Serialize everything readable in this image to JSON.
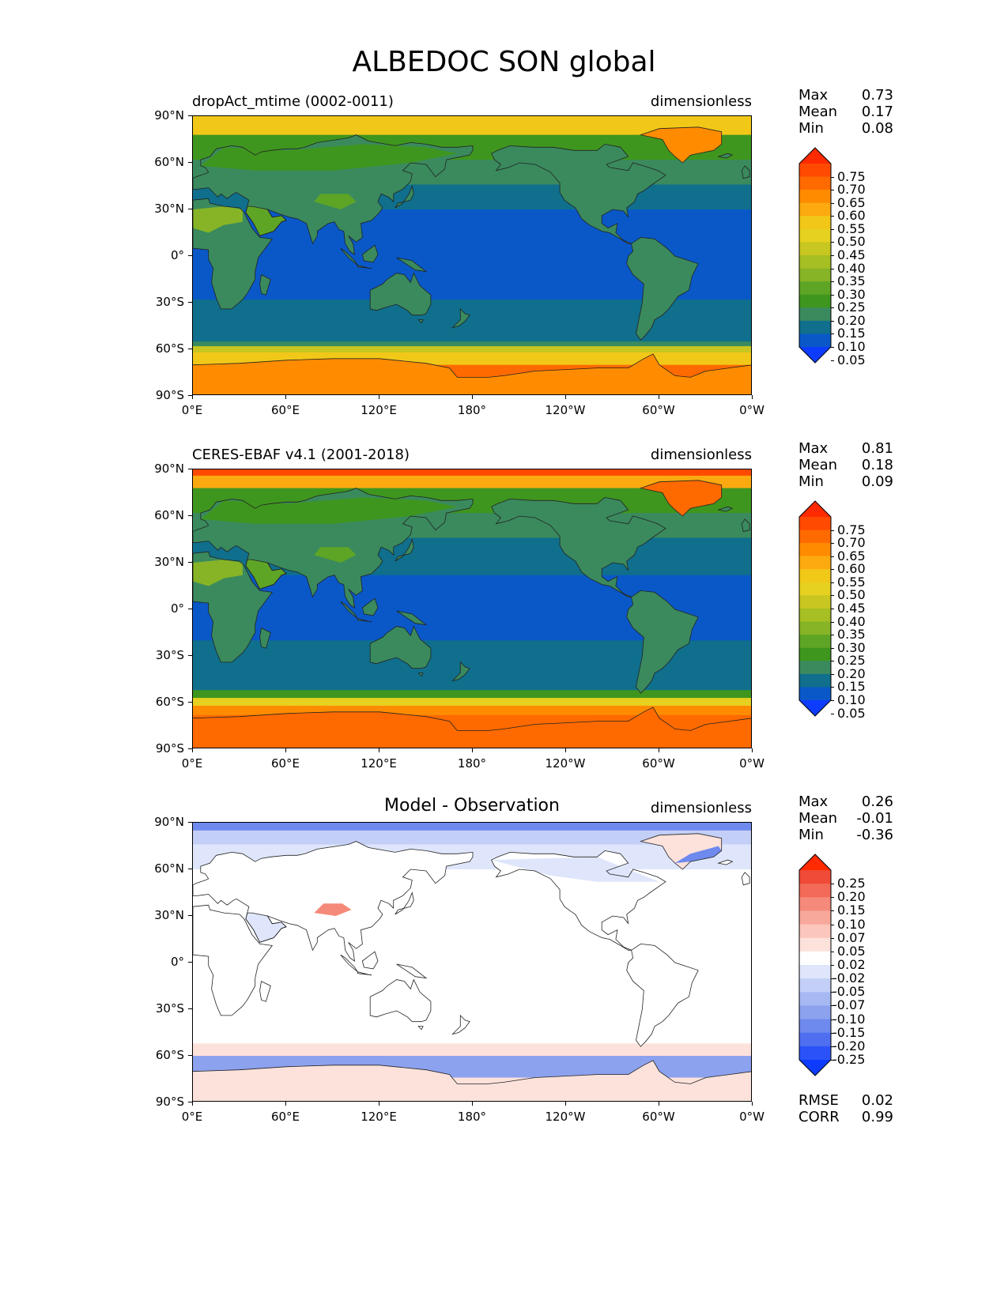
{
  "title": "ALBEDOC SON global",
  "lat_ticks": [
    "90°N",
    "60°N",
    "30°N",
    "0°",
    "30°S",
    "60°S",
    "90°S"
  ],
  "lon_ticks": [
    "0°E",
    "60°E",
    "120°E",
    "180°",
    "120°W",
    "60°W",
    "0°W"
  ],
  "panels": [
    {
      "left_title": "dropAct_mtime (0002-0011)",
      "center_title": "",
      "units": "dimensionless",
      "stats": [
        {
          "name": "Max",
          "value": "0.73"
        },
        {
          "name": "Mean",
          "value": "0.17"
        },
        {
          "name": "Min",
          "value": "0.08"
        }
      ],
      "colorbar_labels": [
        "0.75",
        "0.70",
        "0.65",
        "0.60",
        "0.55",
        "0.50",
        "0.45",
        "0.40",
        "0.35",
        "0.30",
        "0.25",
        "0.20",
        "0.15",
        "0.10",
        "0.05"
      ],
      "colorbar_colors": [
        "#ff2a00",
        "#ff4a00",
        "#ff6a00",
        "#ff8c00",
        "#fcaa10",
        "#f2c818",
        "#e6d020",
        "#c8c620",
        "#a6bf22",
        "#86b426",
        "#5ea526",
        "#3f961e",
        "#3a8a5e",
        "#0f6f8c",
        "#0a58c8",
        "#0d3cff"
      ],
      "field": "model"
    },
    {
      "left_title": "CERES-EBAF v4.1 (2001-2018)",
      "center_title": "",
      "units": "dimensionless",
      "stats": [
        {
          "name": "Max",
          "value": "0.81"
        },
        {
          "name": "Mean",
          "value": "0.18"
        },
        {
          "name": "Min",
          "value": "0.09"
        }
      ],
      "colorbar_labels": [
        "0.75",
        "0.70",
        "0.65",
        "0.60",
        "0.55",
        "0.50",
        "0.45",
        "0.40",
        "0.35",
        "0.30",
        "0.25",
        "0.20",
        "0.15",
        "0.10",
        "0.05"
      ],
      "colorbar_colors": [
        "#ff2a00",
        "#ff4a00",
        "#ff6a00",
        "#ff8c00",
        "#fcaa10",
        "#f2c818",
        "#e6d020",
        "#c8c620",
        "#a6bf22",
        "#86b426",
        "#5ea526",
        "#3f961e",
        "#3a8a5e",
        "#0f6f8c",
        "#0a58c8",
        "#0d3cff"
      ],
      "field": "obs"
    },
    {
      "left_title": "",
      "center_title": "Model - Observation",
      "units": "dimensionless",
      "stats": [
        {
          "name": "Max",
          "value": "0.26"
        },
        {
          "name": "Mean",
          "value": "-0.01"
        },
        {
          "name": "Min",
          "value": "-0.36"
        }
      ],
      "colorbar_labels": [
        "0.25",
        "0.20",
        "0.15",
        "0.10",
        "0.07",
        "0.05",
        "0.02",
        "-0.02",
        "-0.05",
        "-0.07",
        "-0.10",
        "-0.15",
        "-0.20",
        "-0.25"
      ],
      "colorbar_colors": [
        "#ff2a00",
        "#f04a38",
        "#f36a58",
        "#f58a7a",
        "#f8a89a",
        "#fbc6bb",
        "#fde2dc",
        "#ffffff",
        "#dfe6fb",
        "#c3cff6",
        "#a7b9f2",
        "#8ca2ee",
        "#6e8aee",
        "#4f6ff0",
        "#2a52f8",
        "#0d3cff"
      ],
      "field": "diff",
      "footer_stats": [
        {
          "name": "RMSE",
          "value": "0.02"
        },
        {
          "name": "CORR",
          "value": "0.99"
        }
      ]
    }
  ]
}
